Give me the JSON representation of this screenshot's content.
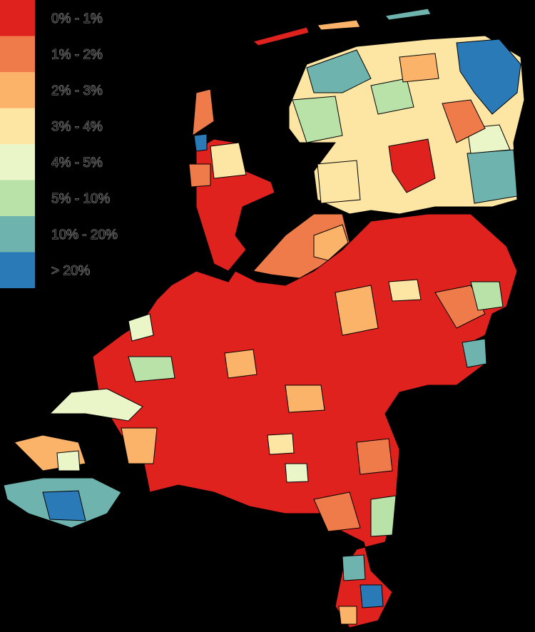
{
  "legend": {
    "items": [
      {
        "label": "0% - 1%",
        "color": "#e0221f"
      },
      {
        "label": "1% - 2%",
        "color": "#ef7b4b"
      },
      {
        "label": "2% - 3%",
        "color": "#fbb36a"
      },
      {
        "label": "3% - 4%",
        "color": "#fde6a3"
      },
      {
        "label": "4% - 5%",
        "color": "#eaf6c8"
      },
      {
        "label": "5% - 10%",
        "color": "#b9e2a8"
      },
      {
        "label": "10% - 20%",
        "color": "#6fb3ae"
      },
      {
        "label": "> 20%",
        "color": "#2a7ab8"
      }
    ]
  }
}
